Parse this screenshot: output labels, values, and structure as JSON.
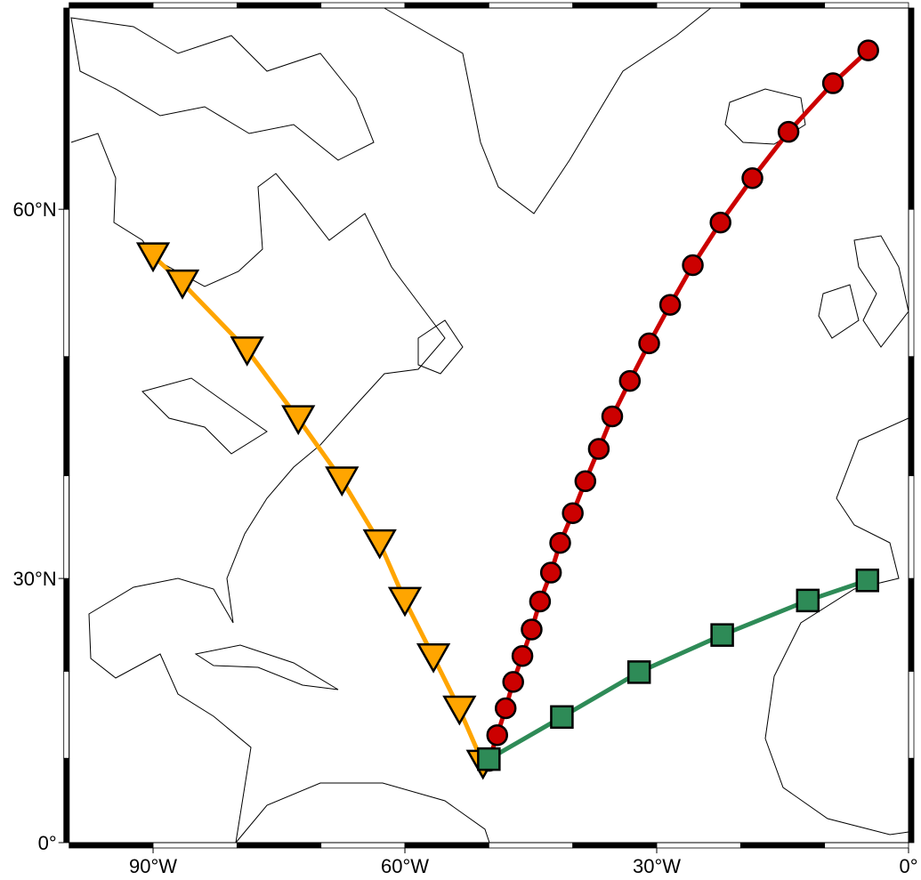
{
  "map": {
    "type": "mercator",
    "xlim": [
      -100,
      0
    ],
    "ylim": [
      0,
      70
    ],
    "xticks": [
      {
        "value": -90,
        "label": "90°W"
      },
      {
        "value": -60,
        "label": "60°W"
      },
      {
        "value": -30,
        "label": "30°W"
      },
      {
        "value": 0,
        "label": "0°"
      }
    ],
    "yticks": [
      {
        "value": 0,
        "label": "0°"
      },
      {
        "value": 30,
        "label": "30°N"
      },
      {
        "value": 60,
        "label": "60°N"
      }
    ],
    "tracks": [
      {
        "marker": "triangle",
        "color": "#ffa500",
        "lon": [
          -90.0,
          -86.5,
          -78.8,
          -72.7,
          -67.5,
          -63.0,
          -60.0,
          -56.6,
          -53.5,
          -50.7
        ],
        "lat": [
          57.1,
          55.3,
          50.5,
          45.0,
          39.6,
          33.6,
          27.7,
          21.6,
          15.7,
          9.4
        ]
      },
      {
        "marker": "circle",
        "color": "#cc0000",
        "lon": [
          -50.0,
          -49.0,
          -48.0,
          -47.1,
          -46.0,
          -44.9,
          -43.9,
          -42.6,
          -41.5,
          -40.0,
          -38.5,
          -36.9,
          -35.3,
          -33.2,
          -30.9,
          -28.4,
          -25.7,
          -22.4,
          -18.6,
          -14.3,
          -9.0,
          -4.8
        ],
        "lat": [
          9.7,
          12.7,
          15.8,
          18.8,
          21.7,
          24.6,
          27.6,
          30.6,
          33.6,
          36.5,
          39.5,
          42.4,
          45.2,
          48.1,
          51.0,
          53.8,
          56.5,
          59.2,
          61.8,
          64.3,
          66.7,
          68.2
        ]
      },
      {
        "marker": "square",
        "color": "#2e8b57",
        "lon": [
          -50.0,
          -41.3,
          -32.1,
          -22.2,
          -12.0,
          -4.9
        ],
        "lat": [
          9.9,
          14.8,
          19.9,
          24.0,
          27.7,
          29.8
        ]
      }
    ]
  }
}
